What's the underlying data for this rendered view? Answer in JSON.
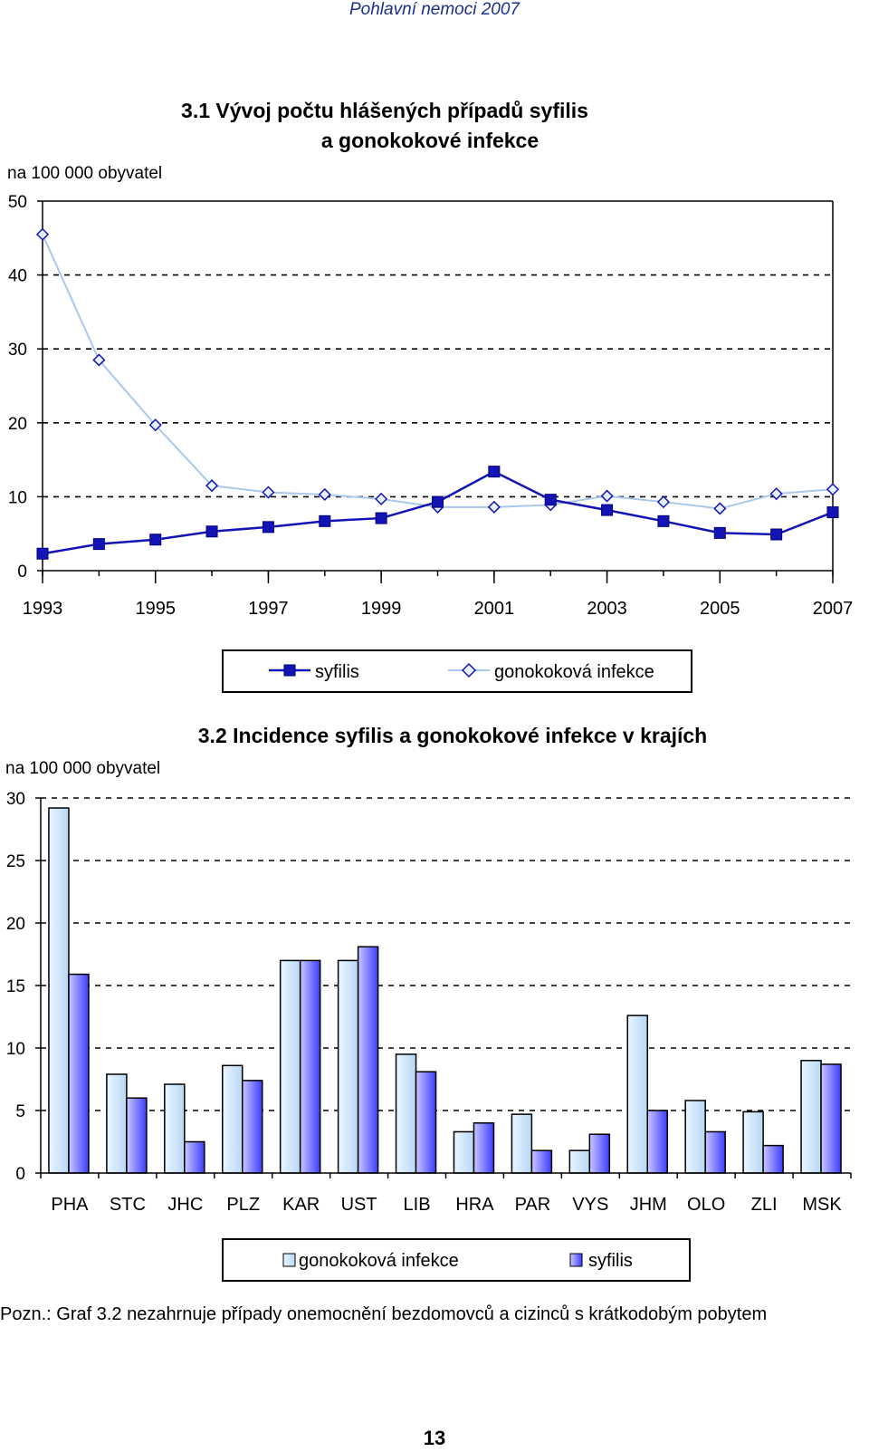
{
  "header": {
    "title": "Pohlavní nemoci 2007"
  },
  "footer": {
    "note": "Pozn.: Graf 3.2 nezahrnuje případy onemocnění bezdomovců a cizinců s krátkodobým pobytem",
    "page_number": "13"
  },
  "colors": {
    "syfilis_line": "#1414b4",
    "gono_line": "#a8c8ec",
    "gono_bar": "#cfe6fa",
    "syf_bar_light": "#c8c8ff",
    "syf_bar_dark": "#3c3cff"
  },
  "chart_data": [
    {
      "type": "line",
      "title_line1": "3.1  Vývoj počtu hlášených případů syfilis",
      "title_line2": "a gonokokové infekce",
      "ylabel": "na 100 000 obyvatel",
      "ylim": [
        0,
        50
      ],
      "yticks": [
        "0",
        "10",
        "20",
        "30",
        "40",
        "50"
      ],
      "xticks": [
        "1993",
        "1995",
        "1997",
        "1999",
        "2001",
        "2003",
        "2005",
        "2007"
      ],
      "x": [
        1993,
        1994,
        1995,
        1996,
        1997,
        1998,
        1999,
        2000,
        2001,
        2002,
        2003,
        2004,
        2005,
        2006,
        2007
      ],
      "grid": "horizontal dashed",
      "legend_position": "below",
      "series": [
        {
          "name": "syfilis",
          "marker": "square",
          "values": [
            2.3,
            3.6,
            4.2,
            5.3,
            5.9,
            6.7,
            7.1,
            9.3,
            13.4,
            9.6,
            8.2,
            6.7,
            5.1,
            4.9,
            7.9
          ]
        },
        {
          "name": "gonokoková infekce",
          "marker": "diamond",
          "values": [
            45.5,
            28.5,
            19.7,
            11.5,
            10.6,
            10.3,
            9.7,
            8.6,
            8.6,
            8.9,
            10.1,
            9.3,
            8.4,
            10.4,
            11.0
          ]
        }
      ]
    },
    {
      "type": "bar",
      "title": "3.2  Incidence syfilis a gonokokové infekce v krajích",
      "ylabel": "na 100 000 obyvatel",
      "ylim": [
        0,
        30
      ],
      "yticks": [
        "0",
        "5",
        "10",
        "15",
        "20",
        "25",
        "30"
      ],
      "categories": [
        "PHA",
        "STC",
        "JHC",
        "PLZ",
        "KAR",
        "UST",
        "LIB",
        "HRA",
        "PAR",
        "VYS",
        "JHM",
        "OLO",
        "ZLI",
        "MSK"
      ],
      "grid": "horizontal dashed",
      "legend_position": "below",
      "series": [
        {
          "name": "gonokoková infekce",
          "values": [
            29.2,
            7.9,
            7.1,
            8.6,
            17.0,
            17.0,
            9.5,
            3.3,
            4.7,
            1.8,
            12.6,
            5.8,
            4.9,
            9.0
          ]
        },
        {
          "name": "syfilis",
          "values": [
            15.9,
            6.0,
            2.5,
            7.4,
            17.0,
            18.1,
            8.1,
            4.0,
            1.8,
            3.1,
            5.0,
            3.3,
            2.2,
            8.7
          ]
        }
      ]
    }
  ]
}
